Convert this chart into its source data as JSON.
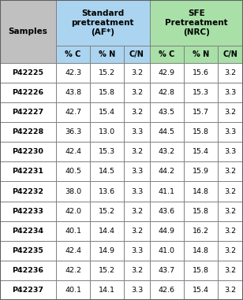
{
  "samples": [
    "P42225",
    "P42226",
    "P42227",
    "P42228",
    "P42230",
    "P42231",
    "P42232",
    "P42233",
    "P42234",
    "P42235",
    "P42236",
    "P42237"
  ],
  "standard_pC": [
    "42.3",
    "43.8",
    "42.7",
    "36.3",
    "42.4",
    "40.5",
    "38.0",
    "42.0",
    "40.1",
    "42.4",
    "42.2",
    "40.1"
  ],
  "standard_pN": [
    "15.2",
    "15.8",
    "15.4",
    "13.0",
    "15.3",
    "14.5",
    "13.6",
    "15.2",
    "14.4",
    "14.9",
    "15.2",
    "14.1"
  ],
  "standard_CN": [
    "3.2",
    "3.2",
    "3.2",
    "3.3",
    "3.2",
    "3.3",
    "3.3",
    "3.2",
    "3.2",
    "3.3",
    "3.2",
    "3.3"
  ],
  "sfe_pC": [
    "42.9",
    "42.8",
    "43.5",
    "44.5",
    "43.2",
    "44.2",
    "41.1",
    "43.6",
    "44.9",
    "41.0",
    "43.7",
    "42.6"
  ],
  "sfe_pN": [
    "15.6",
    "15.3",
    "15.7",
    "15.8",
    "15.4",
    "15.9",
    "14.8",
    "15.8",
    "16.2",
    "14.8",
    "15.8",
    "15.4"
  ],
  "sfe_CN": [
    "3.2",
    "3.3",
    "3.2",
    "3.3",
    "3.3",
    "3.2",
    "3.2",
    "3.2",
    "3.2",
    "3.2",
    "3.2",
    "3.2"
  ],
  "header_bg_samples": "#c0c0c0",
  "header_bg_standard": "#aad4f0",
  "header_bg_sfe": "#a8e0a8",
  "row_bg": "#ffffff",
  "border_color": "#808080",
  "header_text_standard_line1": "Standard",
  "header_text_standard_line2": "pretreatment",
  "header_text_standard_line3": "(AF*)",
  "header_text_sfe_line1": "SFE",
  "header_text_sfe_line2": "Pretreatment",
  "header_text_sfe_line3": "(NRC)",
  "header_text_samples": "Samples",
  "subheader_labels": [
    "% C",
    "% N",
    "C/N",
    "% C",
    "% N",
    "C/N"
  ],
  "figsize": [
    3.08,
    3.81
  ],
  "dpi": 100
}
